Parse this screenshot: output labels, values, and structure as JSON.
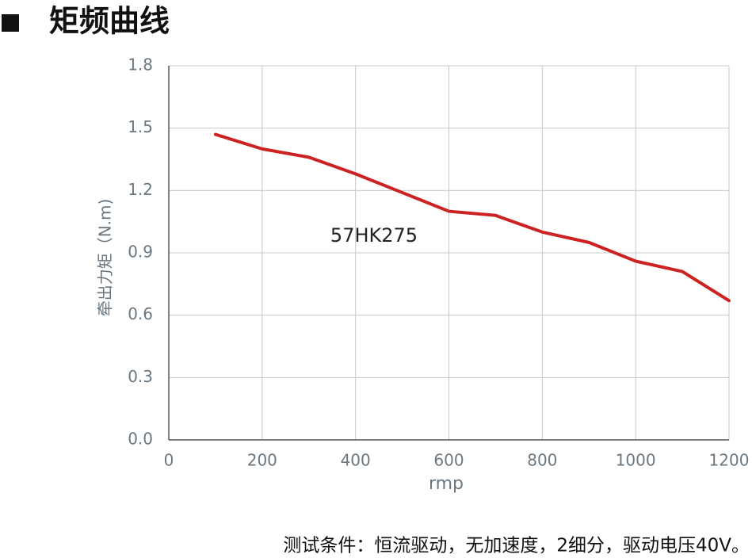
{
  "chart_data": {
    "type": "line",
    "title": "矩频曲线",
    "x_label": "rmp",
    "y_label": "牵出力矩（N.m)",
    "annotation": "57HK275",
    "note": "测试条件：恒流驱动，无加速度，2细分，驱动电压40V。",
    "x": [
      100,
      200,
      300,
      400,
      500,
      600,
      700,
      800,
      900,
      1000,
      1100,
      1200
    ],
    "series": [
      {
        "name": "57HK275",
        "color": "#cc2222",
        "values": [
          1.47,
          1.4,
          1.36,
          1.28,
          1.19,
          1.1,
          1.08,
          1.0,
          0.95,
          0.86,
          0.81,
          0.67
        ]
      }
    ],
    "xlim": [
      0,
      1200
    ],
    "xticks": [
      0,
      200,
      400,
      600,
      800,
      1000,
      1200
    ],
    "ylim": [
      0,
      1.8
    ],
    "yticks": [
      {
        "value": 0,
        "label": "0.0"
      },
      0.3,
      0.6,
      0.9,
      1.2,
      1.5,
      1.8
    ],
    "grid": true
  }
}
